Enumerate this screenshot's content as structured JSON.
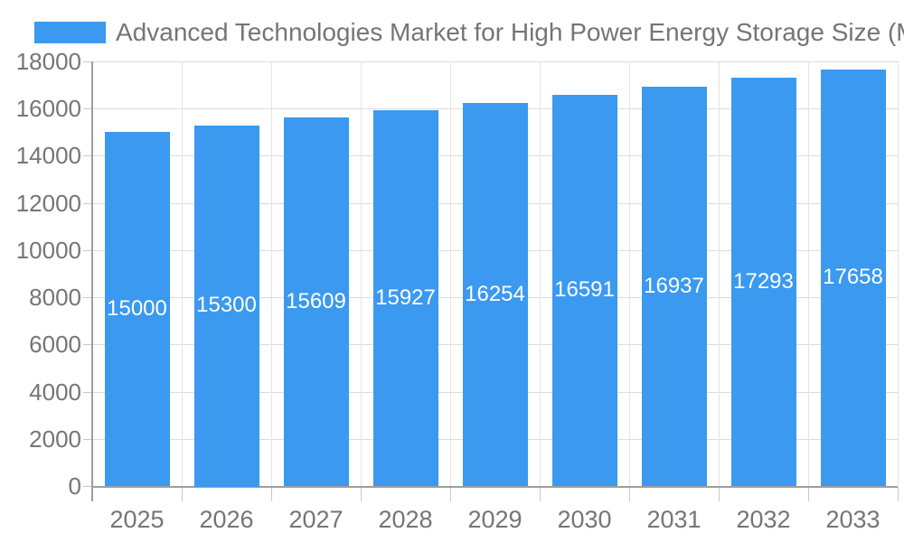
{
  "chart_data": {
    "type": "bar",
    "title": "Advanced Technologies Market for High Power Energy Storage Size (Million)",
    "categories": [
      "2025",
      "2026",
      "2027",
      "2028",
      "2029",
      "2030",
      "2031",
      "2032",
      "2033"
    ],
    "series": [
      {
        "name": "Advanced Technologies Market for High Power Energy Storage Size (Million)",
        "values": [
          15000,
          15300,
          15609,
          15927,
          16254,
          16591,
          16937,
          17293,
          17658
        ]
      }
    ],
    "xlabel": "",
    "ylabel": "",
    "ylim": [
      0,
      18000
    ],
    "ytick_step": 2000,
    "grid": true,
    "legend_position": "top-left",
    "bar_value_labels": true
  },
  "colors": {
    "bar": "#3B99F0",
    "bar_label_text": "#ffffff",
    "axis_line": "#9e9e9e",
    "gridline_horizontal": "#dcdcdc",
    "gridline_vertical": "#e3e3e3",
    "tick": "#c9c9c9",
    "label_text": "#757575",
    "title_text": "#757575",
    "background": "#ffffff"
  }
}
